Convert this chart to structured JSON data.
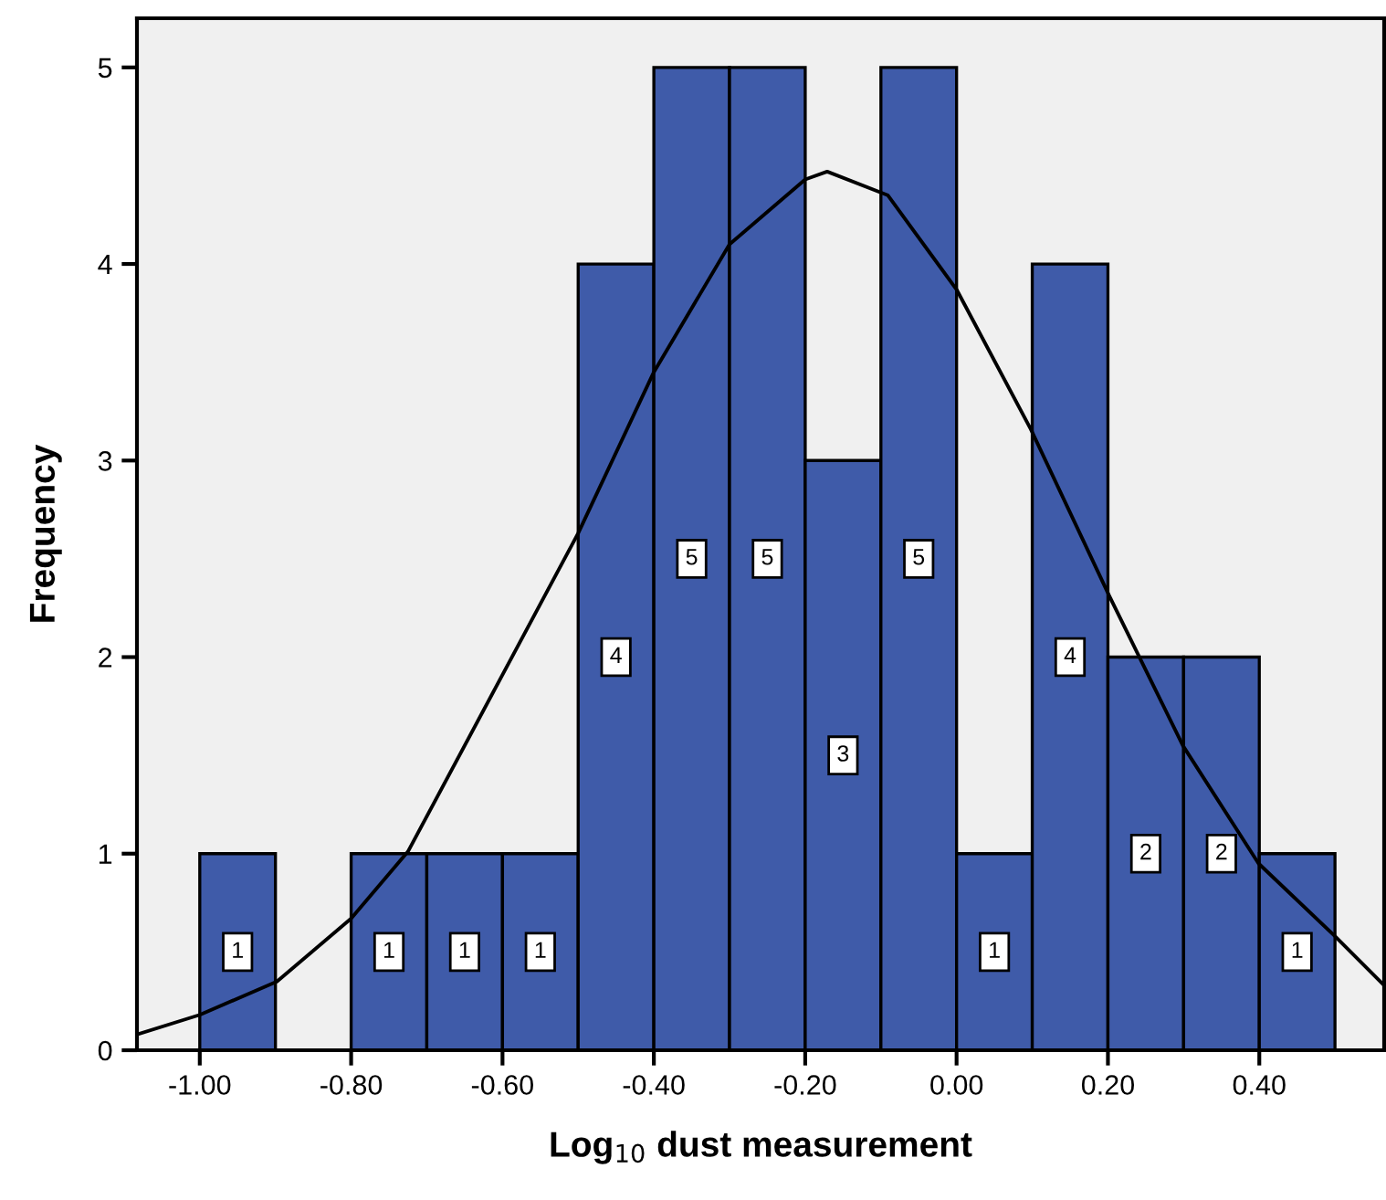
{
  "chart_data": {
    "type": "histogram",
    "xlabel": "Log$_{10}$ dust measurement",
    "ylabel": "Frequency",
    "bins": [
      -1.0,
      -0.9,
      -0.8,
      -0.7,
      -0.6,
      -0.5,
      -0.4,
      -0.3,
      -0.2,
      -0.1,
      0.0,
      0.1,
      0.2,
      0.3,
      0.4,
      0.5
    ],
    "series": [
      {
        "type": "histogram",
        "color": "#3f5ba9",
        "values": [
          1,
          0,
          1,
          1,
          1,
          4,
          5,
          5,
          3,
          5,
          1,
          4,
          2,
          2,
          1
        ],
        "value_labels": [
          "1",
          null,
          "1",
          "1",
          "1",
          "4",
          "5",
          "5",
          "3",
          "5",
          "1",
          "4",
          "2",
          "2",
          "1"
        ]
      },
      {
        "type": "line",
        "color": "#000000",
        "x": [
          -1.083,
          -1.0,
          -0.898,
          -0.8,
          -0.725,
          -0.6,
          -0.5,
          -0.4,
          -0.3,
          -0.2,
          -0.171,
          -0.091,
          0.0,
          0.098,
          0.202,
          0.299,
          0.399,
          0.5,
          0.565
        ],
        "values": [
          0.08,
          0.18,
          0.35,
          0.67,
          1.01,
          1.91,
          2.63,
          3.45,
          4.1,
          4.43,
          4.47,
          4.35,
          3.87,
          3.16,
          2.31,
          1.55,
          0.95,
          0.58,
          0.33
        ]
      }
    ],
    "xlim": [
      -1.083,
      0.565
    ],
    "ylim": [
      0,
      5.25
    ],
    "xticks": [
      {
        "value": -1.0,
        "label": "-1.00"
      },
      {
        "value": -0.8,
        "label": "-0.80"
      },
      {
        "value": -0.6,
        "label": "-0.60"
      },
      {
        "value": -0.4,
        "label": "-0.40"
      },
      {
        "value": -0.2,
        "label": "-0.20"
      },
      {
        "value": 0.0,
        "label": "0.00"
      },
      {
        "value": 0.2,
        "label": "0.20"
      },
      {
        "value": 0.4,
        "label": "0.40"
      }
    ],
    "yticks": [
      0,
      1,
      2,
      3,
      4,
      5
    ],
    "grid": false,
    "marker": "none",
    "line_style": "solid"
  }
}
